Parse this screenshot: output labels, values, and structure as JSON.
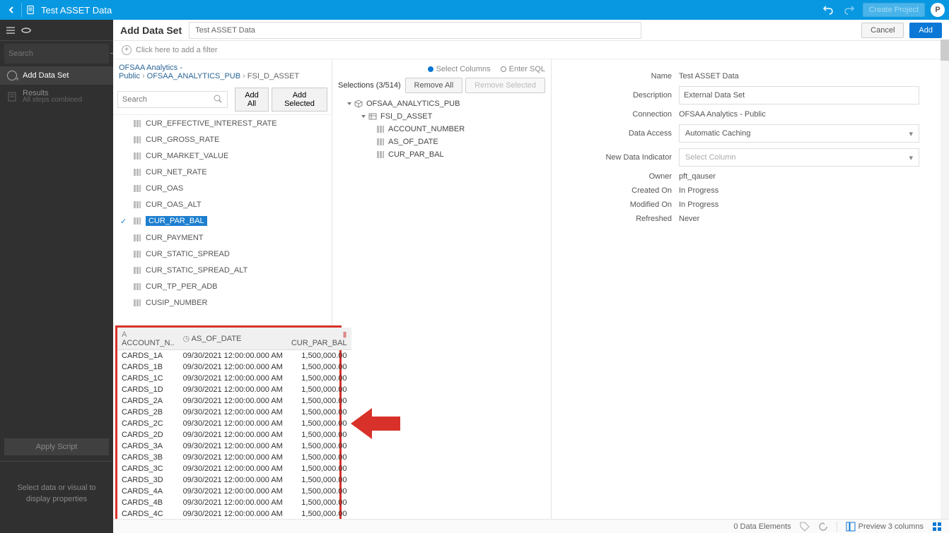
{
  "colors": {
    "header_bg": "#0898e1",
    "sidebar_bg": "#303030",
    "primary_btn": "#0b77d6",
    "callout_red": "#d8312a"
  },
  "header": {
    "title": "Test ASSET Data",
    "create_btn": "Create Project",
    "avatar": "P"
  },
  "sidebar": {
    "search_placeholder": "Search",
    "add_data_set": "Add Data Set",
    "results": "Results",
    "all_steps": "All steps combined",
    "apply_script": "Apply Script",
    "hint": "Select data or visual to display properties"
  },
  "main": {
    "heading": "Add Data Set",
    "name_input": "Test ASSET Data",
    "cancel": "Cancel",
    "add": "Add",
    "filter_hint": "Click here to add a filter"
  },
  "breadcrumb": {
    "a": "OFSAA Analytics - Public",
    "b": "OFSAA_ANALYTICS_PUB",
    "c": "FSI_D_ASSET"
  },
  "colsearch": {
    "placeholder": "Search",
    "add_all": "Add All",
    "add_selected": "Add Selected"
  },
  "columns": [
    {
      "name": "CUR_EFFECTIVE_INTEREST_RATE",
      "sel": false
    },
    {
      "name": "CUR_GROSS_RATE",
      "sel": false
    },
    {
      "name": "CUR_MARKET_VALUE",
      "sel": false
    },
    {
      "name": "CUR_NET_RATE",
      "sel": false
    },
    {
      "name": "CUR_OAS",
      "sel": false
    },
    {
      "name": "CUR_OAS_ALT",
      "sel": false
    },
    {
      "name": "CUR_PAR_BAL",
      "sel": true
    },
    {
      "name": "CUR_PAYMENT",
      "sel": false
    },
    {
      "name": "CUR_STATIC_SPREAD",
      "sel": false
    },
    {
      "name": "CUR_STATIC_SPREAD_ALT",
      "sel": false
    },
    {
      "name": "CUR_TP_PER_ADB",
      "sel": false
    },
    {
      "name": "CUSIP_NUMBER",
      "sel": false
    }
  ],
  "selections": {
    "title": "Selections (3/514)",
    "remove_all": "Remove All",
    "remove_selected": "Remove Selected",
    "mode_cols": "Select Columns",
    "mode_sql": "Enter SQL",
    "tree_root": "OFSAA_ANALYTICS_PUB",
    "tree_child": "FSI_D_ASSET",
    "leaves": [
      "ACCOUNT_NUMBER",
      "AS_OF_DATE",
      "CUR_PAR_BAL"
    ]
  },
  "form": {
    "name_lbl": "Name",
    "name_val": "Test ASSET Data",
    "desc_lbl": "Description",
    "desc_val": "External Data Set",
    "conn_lbl": "Connection",
    "conn_val": "OFSAA Analytics - Public",
    "access_lbl": "Data Access",
    "access_val": "Automatic Caching",
    "indicator_lbl": "New Data Indicator",
    "indicator_val": "Select Column",
    "owner_lbl": "Owner",
    "owner_val": "pft_qauser",
    "created_lbl": "Created On",
    "created_val": "In Progress",
    "modified_lbl": "Modified On",
    "modified_val": "In Progress",
    "refreshed_lbl": "Refreshed",
    "refreshed_val": "Never"
  },
  "preview": {
    "col1": "ACCOUNT_N..",
    "col2": "AS_OF_DATE",
    "col3": "CUR_PAR_BAL",
    "rows": [
      [
        "CARDS_1A",
        "09/30/2021 12:00:00.000 AM",
        "1,500,000.00"
      ],
      [
        "CARDS_1B",
        "09/30/2021 12:00:00.000 AM",
        "1,500,000.00"
      ],
      [
        "CARDS_1C",
        "09/30/2021 12:00:00.000 AM",
        "1,500,000.00"
      ],
      [
        "CARDS_1D",
        "09/30/2021 12:00:00.000 AM",
        "1,500,000.00"
      ],
      [
        "CARDS_2A",
        "09/30/2021 12:00:00.000 AM",
        "1,500,000.00"
      ],
      [
        "CARDS_2B",
        "09/30/2021 12:00:00.000 AM",
        "1,500,000.00"
      ],
      [
        "CARDS_2C",
        "09/30/2021 12:00:00.000 AM",
        "1,500,000.00"
      ],
      [
        "CARDS_2D",
        "09/30/2021 12:00:00.000 AM",
        "1,500,000.00"
      ],
      [
        "CARDS_3A",
        "09/30/2021 12:00:00.000 AM",
        "1,500,000.00"
      ],
      [
        "CARDS_3B",
        "09/30/2021 12:00:00.000 AM",
        "1,500,000.00"
      ],
      [
        "CARDS_3C",
        "09/30/2021 12:00:00.000 AM",
        "1,500,000.00"
      ],
      [
        "CARDS_3D",
        "09/30/2021 12:00:00.000 AM",
        "1,500,000.00"
      ],
      [
        "CARDS_4A",
        "09/30/2021 12:00:00.000 AM",
        "1,500,000.00"
      ],
      [
        "CARDS_4B",
        "09/30/2021 12:00:00.000 AM",
        "1,500,000.00"
      ],
      [
        "CARDS_4C",
        "09/30/2021 12:00:00.000 AM",
        "1,500,000.00"
      ]
    ]
  },
  "status": {
    "elements": "0 Data Elements",
    "preview": "Preview 3 columns"
  }
}
